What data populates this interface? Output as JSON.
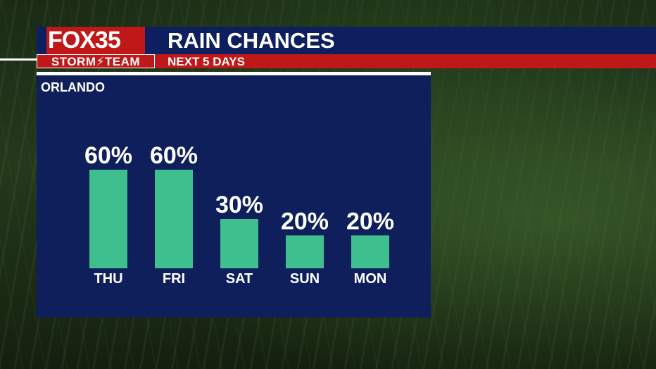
{
  "header": {
    "logo_main": "FOX",
    "logo_number": "35",
    "logo_sub": "STORM⚡TEAM",
    "title": "RAIN CHANCES",
    "subtitle": "NEXT 5 DAYS"
  },
  "panel": {
    "city": "ORLANDO"
  },
  "colors": {
    "bar": "#3fbf8e",
    "panel": "#0e1f5c",
    "accent_red": "#c01818"
  },
  "chart_data": {
    "type": "bar",
    "title": "RAIN CHANCES",
    "subtitle": "NEXT 5 DAYS",
    "categories": [
      "THU",
      "FRI",
      "SAT",
      "SUN",
      "MON"
    ],
    "values": [
      60,
      60,
      30,
      20,
      20
    ],
    "value_labels": [
      "60%",
      "60%",
      "30%",
      "20%",
      "20%"
    ],
    "unit": "%",
    "ylim": [
      0,
      60
    ],
    "grid": false,
    "legend": "none"
  }
}
